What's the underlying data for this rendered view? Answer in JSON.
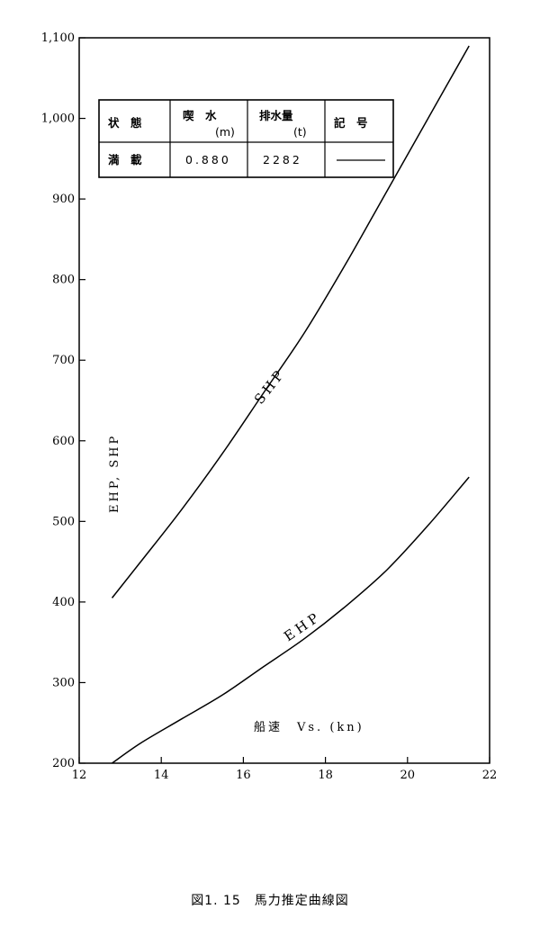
{
  "chart_data": {
    "type": "line",
    "xlabel": "船速　Vs. (kn)",
    "ylabel": "EHP, SHP",
    "xlim": [
      12,
      22
    ],
    "ylim": [
      200,
      1100
    ],
    "xticks": [
      "12",
      "14",
      "16",
      "18",
      "20",
      "22"
    ],
    "yticks": [
      "200",
      "300",
      "400",
      "500",
      "600",
      "700",
      "800",
      "900",
      "1,000",
      "1,100"
    ],
    "grid": false,
    "series": [
      {
        "name": "SHP",
        "x": [
          12.8,
          13.5,
          14.5,
          15.5,
          16.5,
          17.5,
          18.5,
          19.5,
          20.5,
          21.5
        ],
        "y": [
          405,
          450,
          515,
          585,
          660,
          735,
          820,
          910,
          1000,
          1090
        ]
      },
      {
        "name": "EHP",
        "x": [
          12.8,
          13.5,
          14.5,
          15.5,
          16.5,
          17.5,
          18.5,
          19.5,
          20.5,
          21.5
        ],
        "y": [
          200,
          225,
          255,
          285,
          320,
          355,
          395,
          440,
          495,
          555
        ]
      }
    ],
    "legend_table": {
      "headers": [
        {
          "top": "状　態",
          "bottom": ""
        },
        {
          "top": "喫　水",
          "bottom": "(m)"
        },
        {
          "top": "排水量",
          "bottom": "(t)"
        },
        {
          "top": "記　号",
          "bottom": ""
        }
      ],
      "row": {
        "state": "満　載",
        "draft": "0.880",
        "displacement": "2282"
      }
    }
  },
  "caption": "図1. 15　馬力推定曲線図"
}
